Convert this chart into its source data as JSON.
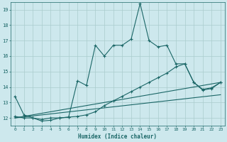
{
  "bg_color": "#cde8ed",
  "grid_color": "#aacccc",
  "line_color": "#1a6666",
  "xlabel": "Humidex (Indice chaleur)",
  "xlim": [
    -0.5,
    23.5
  ],
  "ylim": [
    11.5,
    19.5
  ],
  "yticks": [
    12,
    13,
    14,
    15,
    16,
    17,
    18,
    19
  ],
  "xticks": [
    0,
    1,
    2,
    3,
    4,
    5,
    6,
    7,
    8,
    9,
    10,
    11,
    12,
    13,
    14,
    15,
    16,
    17,
    18,
    19,
    20,
    21,
    22,
    23
  ],
  "line1_x": [
    0,
    1,
    2,
    3,
    4,
    5,
    6,
    7,
    8,
    9,
    10,
    11,
    12,
    13,
    14,
    15,
    16,
    17,
    18,
    19,
    20,
    21,
    22,
    23
  ],
  "line1_y": [
    13.4,
    12.2,
    12.0,
    11.8,
    11.85,
    12.0,
    12.05,
    14.4,
    14.1,
    16.7,
    16.0,
    16.7,
    16.7,
    17.1,
    19.4,
    17.0,
    16.6,
    16.7,
    15.5,
    15.5,
    14.3,
    13.8,
    13.9,
    14.3
  ],
  "line2_x": [
    0,
    1,
    2,
    3,
    4,
    5,
    6,
    7,
    8,
    9,
    10,
    11,
    12,
    13,
    14,
    15,
    16,
    17,
    18,
    19,
    20,
    21,
    22,
    23
  ],
  "line2_y": [
    12.1,
    12.0,
    12.0,
    11.9,
    12.0,
    12.0,
    12.05,
    12.1,
    12.2,
    12.4,
    12.8,
    13.1,
    13.4,
    13.7,
    14.0,
    14.3,
    14.6,
    14.9,
    15.3,
    15.5,
    14.3,
    13.85,
    13.95,
    14.3
  ],
  "line3_x": [
    0,
    23
  ],
  "line3_y": [
    12.0,
    14.3
  ],
  "line4_x": [
    0,
    23
  ],
  "line4_y": [
    12.0,
    13.5
  ]
}
